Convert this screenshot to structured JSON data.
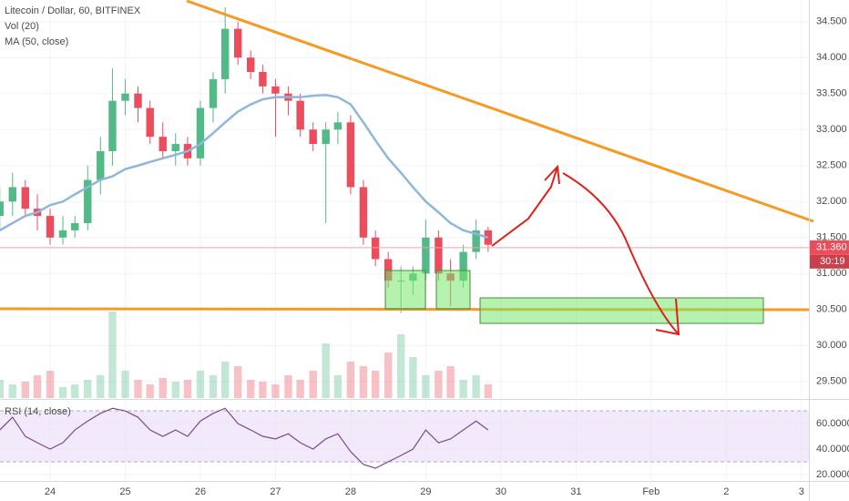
{
  "chart_data": [
    {
      "type": "candlestick",
      "title": "Litecoin / Dollar, 60, BITFINEX",
      "x": [
        23.33,
        23.5,
        23.67,
        23.83,
        24,
        24.17,
        24.33,
        24.5,
        24.67,
        24.83,
        25,
        25.17,
        25.33,
        25.5,
        25.67,
        25.83,
        26,
        26.17,
        26.33,
        26.5,
        26.67,
        26.83,
        27,
        27.17,
        27.33,
        27.5,
        27.67,
        27.83,
        28,
        28.17,
        28.33,
        28.5,
        28.67,
        28.83,
        29,
        29.17,
        29.33,
        29.5,
        29.67,
        29.83
      ],
      "open": [
        31.8,
        32.0,
        32.2,
        31.9,
        31.8,
        31.5,
        31.6,
        31.7,
        32.3,
        32.7,
        33.4,
        33.5,
        33.3,
        32.9,
        32.7,
        32.8,
        32.6,
        33.3,
        33.7,
        34.4,
        34.0,
        33.8,
        33.6,
        33.5,
        33.4,
        33.0,
        32.8,
        33.0,
        33.1,
        32.2,
        31.5,
        31.2,
        30.9,
        30.9,
        31.0,
        31.5,
        31.0,
        30.9,
        31.3,
        31.6
      ],
      "high": [
        32.2,
        32.4,
        32.3,
        32.1,
        31.9,
        31.8,
        31.8,
        32.5,
        32.9,
        33.85,
        33.7,
        33.6,
        33.4,
        33.1,
        32.95,
        32.9,
        33.4,
        33.8,
        34.7,
        34.5,
        34.1,
        33.9,
        33.7,
        33.6,
        33.5,
        33.1,
        33.1,
        33.25,
        33.2,
        32.3,
        31.6,
        31.3,
        31.1,
        31.1,
        31.75,
        31.6,
        31.2,
        31.4,
        31.75,
        31.65
      ],
      "low": [
        31.6,
        31.8,
        31.8,
        31.6,
        31.4,
        31.4,
        31.5,
        31.6,
        32.1,
        32.5,
        33.2,
        33.1,
        32.8,
        32.6,
        32.5,
        32.5,
        32.5,
        33.1,
        33.5,
        33.9,
        33.7,
        33.5,
        32.9,
        33.2,
        32.9,
        32.7,
        31.7,
        32.8,
        32.1,
        31.4,
        31.1,
        30.8,
        30.45,
        30.7,
        30.9,
        30.9,
        30.55,
        30.8,
        31.2,
        31.3
      ],
      "close": [
        32.0,
        32.2,
        31.9,
        31.8,
        31.5,
        31.6,
        31.7,
        32.3,
        32.7,
        33.4,
        33.5,
        33.3,
        32.9,
        32.7,
        32.8,
        32.6,
        33.3,
        33.7,
        34.4,
        34.0,
        33.8,
        33.6,
        33.5,
        33.4,
        33.0,
        32.8,
        33.0,
        33.1,
        32.2,
        31.5,
        31.2,
        30.9,
        30.9,
        31.0,
        31.5,
        31.0,
        30.9,
        31.3,
        31.6,
        31.4
      ],
      "up_color": "#53b987",
      "down_color": "#eb4d5c",
      "ma": {
        "name": "MA (50, close)",
        "color": "#8fb6dc",
        "values": [
          31.6,
          31.7,
          31.8,
          31.85,
          31.95,
          32.0,
          32.1,
          32.2,
          32.3,
          32.35,
          32.45,
          32.5,
          32.55,
          32.6,
          32.65,
          32.7,
          32.8,
          32.95,
          33.1,
          33.25,
          33.35,
          33.42,
          33.45,
          33.45,
          33.45,
          33.47,
          33.48,
          33.45,
          33.35,
          33.1,
          32.85,
          32.6,
          32.4,
          32.2,
          32.0,
          31.85,
          31.7,
          31.6,
          31.55,
          31.5
        ]
      },
      "volume": {
        "name": "Vol (20)",
        "vlim": [
          0,
          110
        ],
        "values": [
          20,
          15,
          18,
          25,
          30,
          12,
          15,
          20,
          25,
          95,
          30,
          20,
          15,
          22,
          18,
          20,
          30,
          25,
          40,
          35,
          20,
          18,
          15,
          25,
          20,
          30,
          60,
          25,
          40,
          35,
          30,
          50,
          70,
          45,
          25,
          30,
          35,
          20,
          25,
          15
        ]
      },
      "last_price": {
        "value": 31.36,
        "label": "31.360"
      },
      "countdown": "30:19",
      "xlim": [
        23.333,
        34.1
      ],
      "ylim": [
        29.27,
        34.8
      ],
      "yticks": [
        {
          "value": 29.5,
          "label": "29.500"
        },
        {
          "value": 30,
          "label": "30.000"
        },
        {
          "value": 30.5,
          "label": "30.500"
        },
        {
          "value": 31,
          "label": "31.000"
        },
        {
          "value": 31.5,
          "label": "31.500"
        },
        {
          "value": 32,
          "label": "32.000"
        },
        {
          "value": 32.5,
          "label": "32.500"
        },
        {
          "value": 33,
          "label": "33.000"
        },
        {
          "value": 33.5,
          "label": "33.500"
        },
        {
          "value": 34,
          "label": "34.000"
        },
        {
          "value": 34.5,
          "label": "34.500"
        }
      ],
      "xticks": [
        24,
        25,
        26,
        27,
        28,
        29,
        30,
        31,
        {
          "value": 32,
          "label": "Feb"
        },
        {
          "value": 33,
          "label": "2"
        },
        {
          "value": 34,
          "label": "3"
        }
      ],
      "grid": true
    },
    {
      "type": "line",
      "series": [
        {
          "name": "RSI (14, close)",
          "color": "#7b4a8f",
          "values": [
            55,
            65,
            50,
            45,
            40,
            45,
            55,
            62,
            68,
            72,
            70,
            65,
            55,
            50,
            55,
            50,
            62,
            68,
            72,
            60,
            55,
            50,
            48,
            52,
            45,
            40,
            48,
            52,
            38,
            28,
            25,
            30,
            35,
            40,
            55,
            45,
            48,
            55,
            62,
            55
          ]
        }
      ],
      "band": [
        30,
        70
      ],
      "band_color": "#e9dcf7",
      "ylim": [
        15.7,
        77.9
      ],
      "yticks": [
        {
          "value": 20,
          "label": "20.0000"
        },
        {
          "value": 40,
          "label": "40.0000"
        },
        {
          "value": 60,
          "label": "60.0000"
        }
      ],
      "grid": true
    }
  ]
}
